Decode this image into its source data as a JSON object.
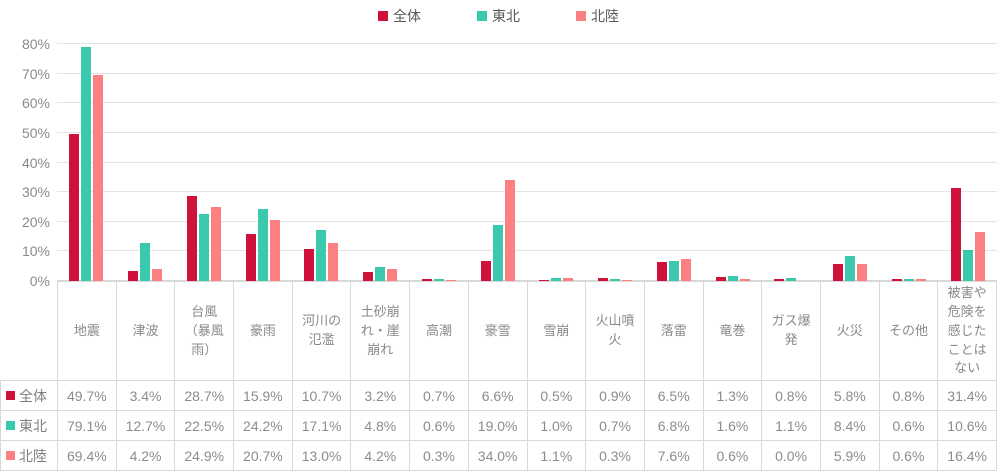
{
  "colors": {
    "series_zentai": "#ce123c",
    "series_tohoku": "#3ac9ac",
    "series_hokuriku": "#fc7f81",
    "gridline": "#e4e4e4",
    "axis_line": "#d6d6d6",
    "table_border": "#d9d9d9",
    "axis_text": "#8a8a8a",
    "table_text": "#8c8c8c",
    "legend_text": "#595959"
  },
  "chart_data": {
    "type": "bar",
    "title": "",
    "categories": [
      "地震",
      "津波",
      "台風（暴風雨）",
      "豪雨",
      "河川の氾濫",
      "土砂崩れ・崖崩れ",
      "高潮",
      "豪雪",
      "雪崩",
      "火山噴火",
      "落雷",
      "竜巻",
      "ガス爆発",
      "火災",
      "その他",
      "被害や危険を感じたことはない"
    ],
    "series": [
      {
        "name": "全体",
        "color": "#ce123c",
        "values": [
          49.7,
          3.4,
          28.7,
          15.9,
          10.7,
          3.2,
          0.7,
          6.6,
          0.5,
          0.9,
          6.5,
          1.3,
          0.8,
          5.8,
          0.8,
          31.4
        ]
      },
      {
        "name": "東北",
        "color": "#3ac9ac",
        "values": [
          79.1,
          12.7,
          22.5,
          24.2,
          17.1,
          4.8,
          0.6,
          19.0,
          1.0,
          0.7,
          6.8,
          1.6,
          1.1,
          8.4,
          0.6,
          10.6
        ]
      },
      {
        "name": "北陸",
        "color": "#fc7f81",
        "values": [
          69.4,
          4.2,
          24.9,
          20.7,
          13.0,
          4.2,
          0.3,
          34.0,
          1.1,
          0.3,
          7.6,
          0.6,
          0.0,
          5.9,
          0.6,
          16.4
        ]
      }
    ],
    "ylim": [
      0,
      80
    ],
    "ytick_step": 10,
    "ytick_suffix": "%",
    "value_suffix": "%",
    "value_decimals": 1,
    "grid": true,
    "legend_position": "top-center",
    "show_data_table": true
  }
}
